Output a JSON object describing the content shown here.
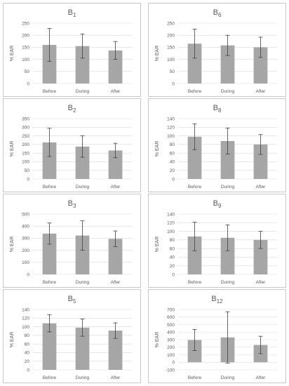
{
  "colors": {
    "bar": "#a6a6a6",
    "grid": "#d9d9d9",
    "text": "#595959",
    "error_bar": "#404040"
  },
  "chart_data": [
    {
      "type": "bar",
      "title_main": "B",
      "title_sub": "1",
      "ylabel": "% EAR",
      "categories": [
        "Before",
        "During",
        "After"
      ],
      "ylim": [
        0,
        250
      ],
      "yticks": [
        0,
        50,
        100,
        150,
        200,
        250
      ],
      "values": [
        160,
        155,
        137
      ],
      "error": [
        68,
        50,
        37
      ],
      "grid": true
    },
    {
      "type": "bar",
      "title_main": "B",
      "title_sub": "6",
      "ylabel": "% EAR",
      "categories": [
        "Before",
        "During",
        "After"
      ],
      "ylim": [
        0,
        250
      ],
      "yticks": [
        0,
        50,
        100,
        150,
        200,
        250
      ],
      "values": [
        165,
        158,
        150
      ],
      "error": [
        60,
        42,
        42
      ],
      "grid": true
    },
    {
      "type": "bar",
      "title_main": "B",
      "title_sub": "2",
      "ylabel": "% EAR",
      "categories": [
        "Before",
        "During",
        "After"
      ],
      "ylim": [
        0,
        350
      ],
      "yticks": [
        0,
        50,
        100,
        150,
        200,
        250,
        300,
        350
      ],
      "values": [
        212,
        188,
        165
      ],
      "error": [
        82,
        62,
        42
      ],
      "grid": true
    },
    {
      "type": "bar",
      "title_main": "B",
      "title_sub": "8",
      "ylabel": "% EAR",
      "categories": [
        "Before",
        "During",
        "After"
      ],
      "ylim": [
        0,
        140
      ],
      "yticks": [
        0,
        20,
        40,
        60,
        80,
        100,
        120,
        140
      ],
      "values": [
        98,
        88,
        80
      ],
      "error": [
        30,
        30,
        23
      ],
      "grid": true
    },
    {
      "type": "bar",
      "title_main": "B",
      "title_sub": "3",
      "ylabel": "% EAR",
      "categories": [
        "Before",
        "During",
        "After"
      ],
      "ylim": [
        0,
        500
      ],
      "yticks": [
        0,
        100,
        200,
        300,
        400,
        500
      ],
      "values": [
        338,
        322,
        295
      ],
      "error": [
        88,
        122,
        65
      ],
      "grid": true
    },
    {
      "type": "bar",
      "title_main": "B",
      "title_sub": "9",
      "ylabel": "% EAR",
      "categories": [
        "Before",
        "During",
        "After"
      ],
      "ylim": [
        0,
        140
      ],
      "yticks": [
        0,
        20,
        40,
        60,
        80,
        100,
        120,
        140
      ],
      "values": [
        88,
        85,
        80
      ],
      "error": [
        33,
        30,
        20
      ],
      "grid": true
    },
    {
      "type": "bar",
      "title_main": "B",
      "title_sub": "5",
      "ylabel": "% EAR",
      "categories": [
        "Before",
        "During",
        "After"
      ],
      "ylim": [
        0,
        140
      ],
      "yticks": [
        0,
        20,
        40,
        60,
        80,
        100,
        120,
        140
      ],
      "values": [
        108,
        98,
        91
      ],
      "error": [
        20,
        20,
        18
      ],
      "grid": true
    },
    {
      "type": "bar",
      "title_main": "B",
      "title_sub": "12",
      "ylabel": "% EAR",
      "categories": [
        "Before",
        "During",
        "After"
      ],
      "ylim": [
        -100,
        700
      ],
      "yticks": [
        -100,
        0,
        100,
        200,
        300,
        400,
        500,
        600,
        700
      ],
      "values": [
        295,
        330,
        230
      ],
      "error": [
        140,
        340,
        115
      ],
      "grid": true
    }
  ]
}
